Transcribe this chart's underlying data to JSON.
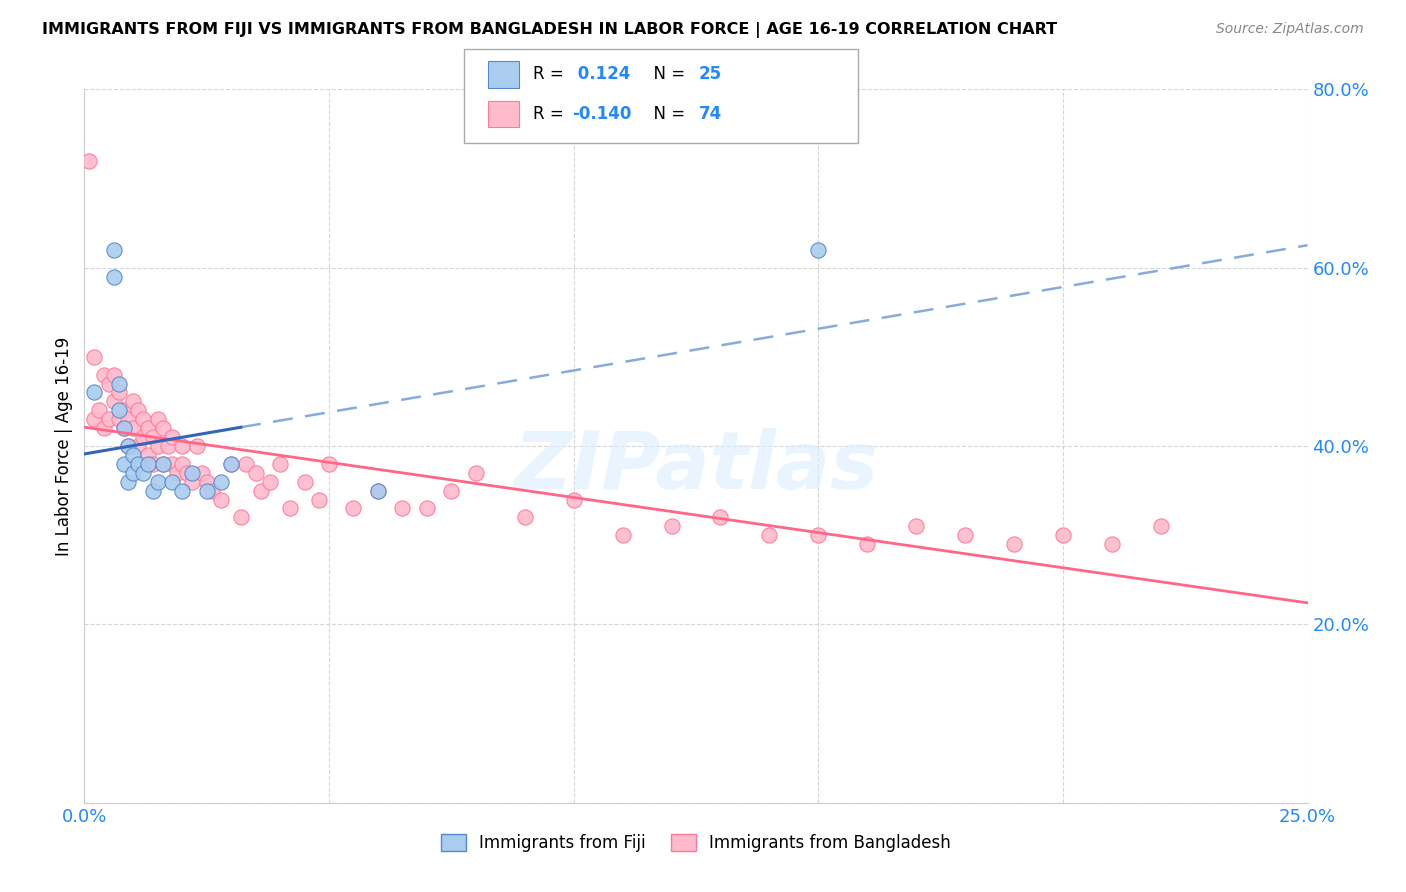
{
  "title": "IMMIGRANTS FROM FIJI VS IMMIGRANTS FROM BANGLADESH IN LABOR FORCE | AGE 16-19 CORRELATION CHART",
  "source": "Source: ZipAtlas.com",
  "ylabel": "In Labor Force | Age 16-19",
  "xlim": [
    0.0,
    0.25
  ],
  "ylim": [
    0.0,
    0.8
  ],
  "xticks": [
    0.0,
    0.05,
    0.1,
    0.15,
    0.2,
    0.25
  ],
  "yticks": [
    0.0,
    0.2,
    0.4,
    0.6,
    0.8
  ],
  "fiji_color": "#aaccee",
  "fiji_edge_color": "#5588cc",
  "bangladesh_color": "#ffbbcc",
  "bangladesh_edge_color": "#ff7799",
  "fiji_R": 0.124,
  "fiji_N": 25,
  "bangladesh_R": -0.14,
  "bangladesh_N": 74,
  "fiji_line_color": "#3366bb",
  "fiji_line_dash_color": "#88aadd",
  "bangladesh_line_color": "#ff6688",
  "watermark_text": "ZIPatlas",
  "legend_fiji_text": "R =  0.124   N = 25",
  "legend_bangladesh_text": "R = -0.140   N = 74",
  "fiji_scatter_x": [
    0.002,
    0.006,
    0.006,
    0.007,
    0.007,
    0.008,
    0.008,
    0.009,
    0.009,
    0.01,
    0.01,
    0.011,
    0.012,
    0.013,
    0.014,
    0.015,
    0.016,
    0.018,
    0.02,
    0.022,
    0.025,
    0.028,
    0.03,
    0.06,
    0.15
  ],
  "fiji_scatter_y": [
    0.46,
    0.62,
    0.59,
    0.44,
    0.47,
    0.38,
    0.42,
    0.36,
    0.4,
    0.37,
    0.39,
    0.38,
    0.37,
    0.38,
    0.35,
    0.36,
    0.38,
    0.36,
    0.35,
    0.37,
    0.35,
    0.36,
    0.38,
    0.35,
    0.62
  ],
  "bangladesh_scatter_x": [
    0.001,
    0.002,
    0.002,
    0.003,
    0.004,
    0.004,
    0.005,
    0.005,
    0.006,
    0.006,
    0.007,
    0.007,
    0.008,
    0.008,
    0.009,
    0.009,
    0.01,
    0.01,
    0.011,
    0.011,
    0.012,
    0.012,
    0.013,
    0.013,
    0.014,
    0.014,
    0.015,
    0.015,
    0.016,
    0.016,
    0.017,
    0.018,
    0.018,
    0.019,
    0.02,
    0.02,
    0.021,
    0.022,
    0.023,
    0.024,
    0.025,
    0.026,
    0.028,
    0.03,
    0.032,
    0.033,
    0.035,
    0.036,
    0.038,
    0.04,
    0.042,
    0.045,
    0.048,
    0.05,
    0.055,
    0.06,
    0.065,
    0.07,
    0.075,
    0.08,
    0.09,
    0.1,
    0.11,
    0.12,
    0.13,
    0.14,
    0.15,
    0.16,
    0.17,
    0.18,
    0.19,
    0.2,
    0.21,
    0.22
  ],
  "bangladesh_scatter_y": [
    0.72,
    0.5,
    0.43,
    0.44,
    0.48,
    0.42,
    0.47,
    0.43,
    0.45,
    0.48,
    0.43,
    0.46,
    0.42,
    0.44,
    0.4,
    0.43,
    0.42,
    0.45,
    0.4,
    0.44,
    0.41,
    0.43,
    0.39,
    0.42,
    0.38,
    0.41,
    0.4,
    0.43,
    0.38,
    0.42,
    0.4,
    0.38,
    0.41,
    0.37,
    0.4,
    0.38,
    0.37,
    0.36,
    0.4,
    0.37,
    0.36,
    0.35,
    0.34,
    0.38,
    0.32,
    0.38,
    0.37,
    0.35,
    0.36,
    0.38,
    0.33,
    0.36,
    0.34,
    0.38,
    0.33,
    0.35,
    0.33,
    0.33,
    0.35,
    0.37,
    0.32,
    0.34,
    0.3,
    0.31,
    0.32,
    0.3,
    0.3,
    0.29,
    0.31,
    0.3,
    0.29,
    0.3,
    0.29,
    0.31
  ]
}
